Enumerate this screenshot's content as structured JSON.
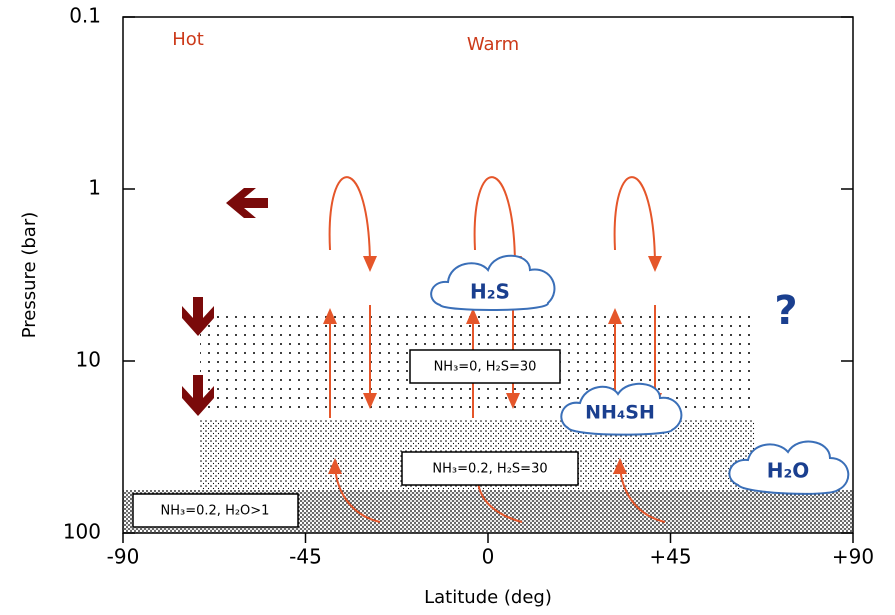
{
  "chart_data": {
    "type": "schematic",
    "xlabel": "Latitude (deg)",
    "ylabel": "Pressure (bar)",
    "xlim": [
      -90,
      90
    ],
    "xticks": [
      -90,
      -45,
      0,
      {
        "value": 45,
        "label": "+45"
      },
      {
        "value": 90,
        "label": "+90"
      }
    ],
    "ylim": [
      100,
      0.1
    ],
    "ylog": true,
    "yticks": [
      0.1,
      1,
      10,
      100
    ],
    "annotations": [
      "Hot",
      "Warm",
      "?"
    ],
    "clouds": [
      "H₂S",
      "NH₄SH",
      "H₂O"
    ],
    "boxes": [
      "NH₃=0, H₂S=30",
      "NH₃=0.2, H₂S=30",
      "NH₃=0.2, H₂O>1"
    ]
  }
}
